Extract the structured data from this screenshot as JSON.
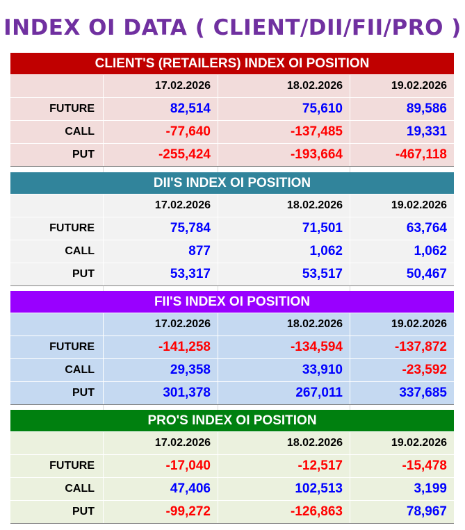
{
  "title": "INDEX OI DATA ( CLIENT/DII/FII/PRO )",
  "colors": {
    "title": "#7030a0",
    "positive": "#0000ff",
    "negative": "#ff0000"
  },
  "sections": [
    {
      "heading": "CLIENT'S (RETAILERS) INDEX OI POSITION",
      "header_color": "#c00000",
      "body_color": "#f2dcdb",
      "dates": [
        "17.02.2026",
        "18.02.2026",
        "19.02.2026"
      ],
      "rows": [
        {
          "label": "FUTURE",
          "values": [
            "82,514",
            "75,610",
            "89,586"
          ]
        },
        {
          "label": "CALL",
          "values": [
            "-77,640",
            "-137,485",
            "19,331"
          ]
        },
        {
          "label": "PUT",
          "values": [
            "-255,424",
            "-193,664",
            "-467,118"
          ]
        }
      ]
    },
    {
      "heading": "DII'S INDEX OI POSITION",
      "header_color": "#31849b",
      "body_color": "#f2f2f2",
      "dates": [
        "17.02.2026",
        "18.02.2026",
        "19.02.2026"
      ],
      "rows": [
        {
          "label": "FUTURE",
          "values": [
            "75,784",
            "71,501",
            "63,764"
          ]
        },
        {
          "label": "CALL",
          "values": [
            "877",
            "1,062",
            "1,062"
          ]
        },
        {
          "label": "PUT",
          "values": [
            "53,317",
            "53,517",
            "50,467"
          ]
        }
      ]
    },
    {
      "heading": "FII'S INDEX OI POSITION",
      "header_color": "#9900ff",
      "body_color": "#c5d9f1",
      "dates": [
        "17.02.2026",
        "18.02.2026",
        "19.02.2026"
      ],
      "rows": [
        {
          "label": "FUTURE",
          "values": [
            "-141,258",
            "-134,594",
            "-137,872"
          ]
        },
        {
          "label": "CALL",
          "values": [
            "29,358",
            "33,910",
            "-23,592"
          ]
        },
        {
          "label": "PUT",
          "values": [
            "301,378",
            "267,011",
            "337,685"
          ]
        }
      ]
    },
    {
      "heading": "PRO'S INDEX OI POSITION",
      "header_color": "#00800f",
      "body_color": "#ebf1de",
      "dates": [
        "17.02.2026",
        "18.02.2026",
        "19.02.2026"
      ],
      "rows": [
        {
          "label": "FUTURE",
          "values": [
            "-17,040",
            "-12,517",
            "-15,478"
          ]
        },
        {
          "label": "CALL",
          "values": [
            "47,406",
            "102,513",
            "3,199"
          ]
        },
        {
          "label": "PUT",
          "values": [
            "-99,272",
            "-126,863",
            "78,967"
          ]
        }
      ]
    }
  ]
}
